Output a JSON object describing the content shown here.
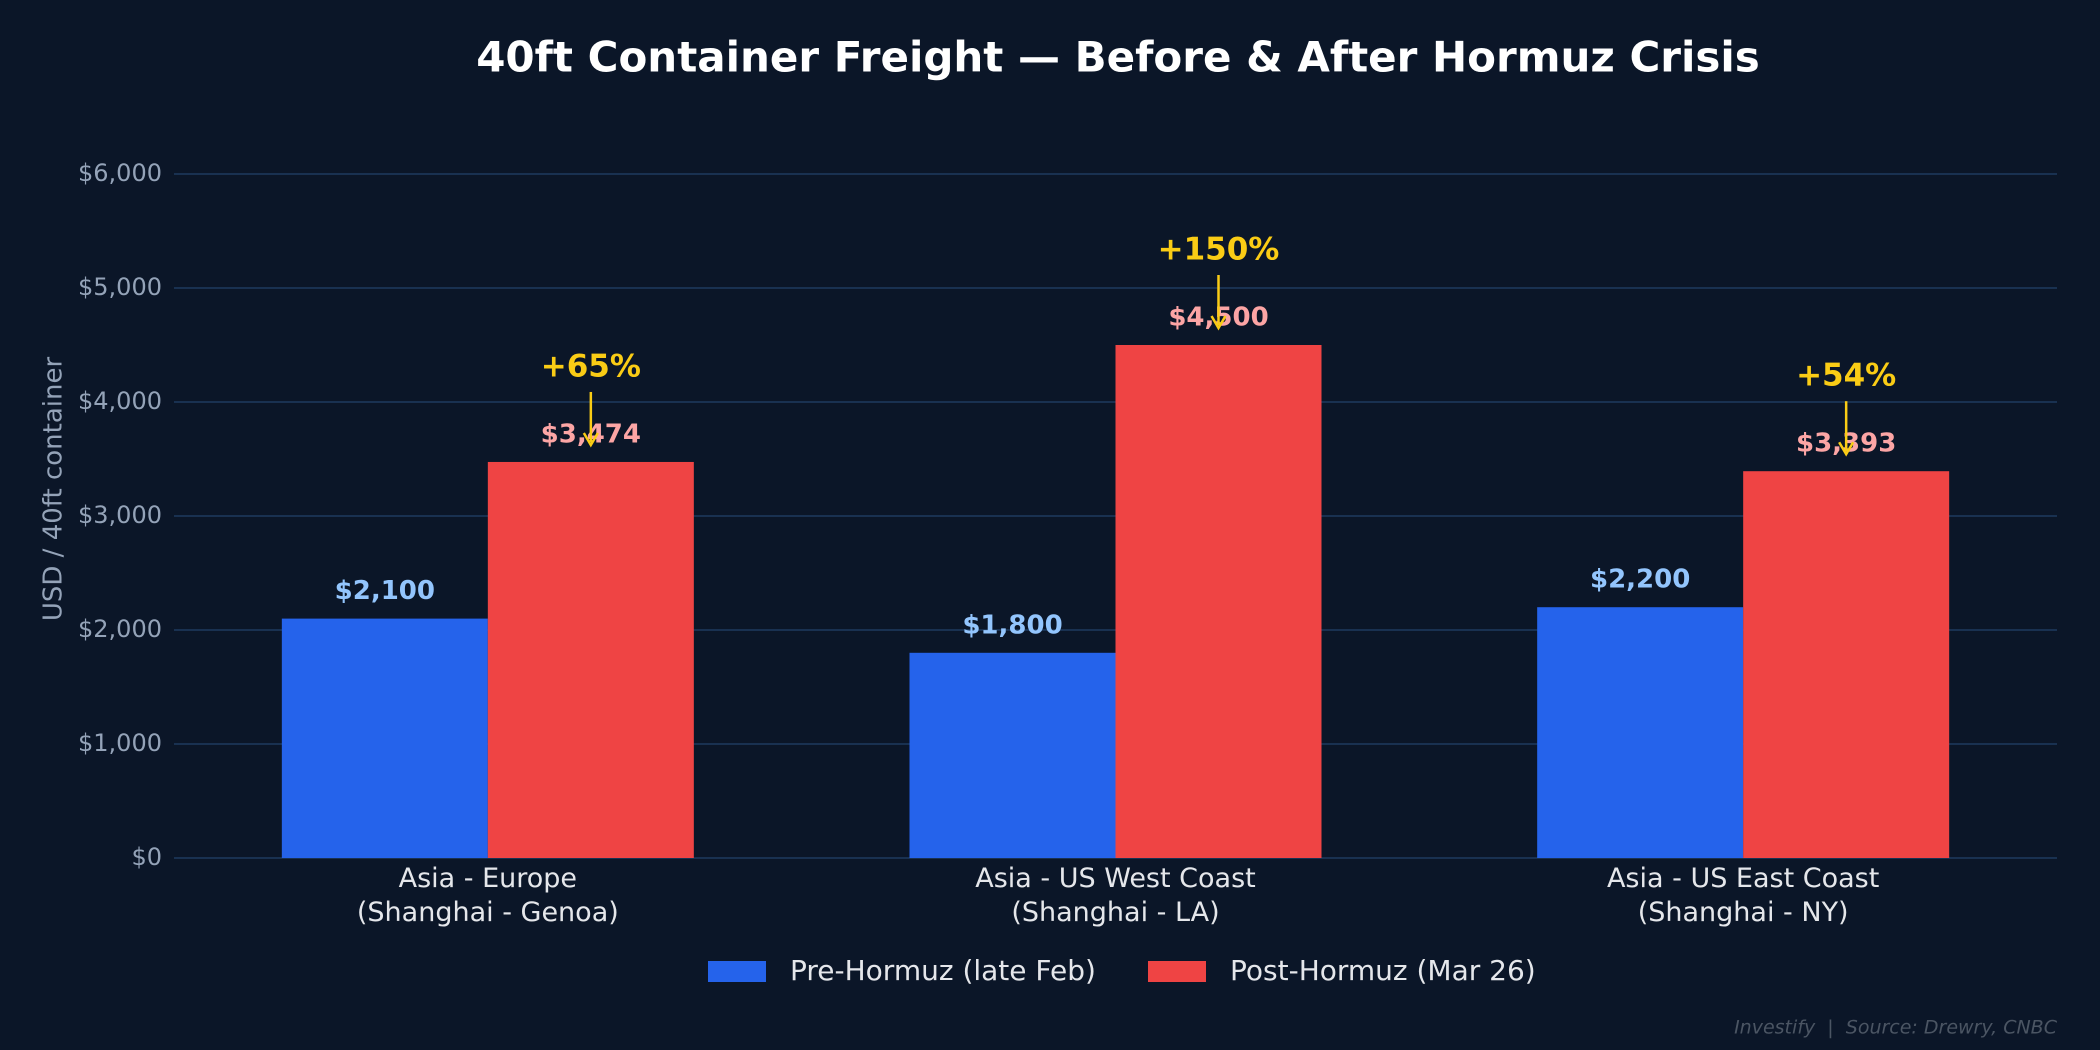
{
  "chart_data": {
    "type": "bar",
    "title": "40ft Container Freight — Before & After Hormuz Crisis",
    "y_label": "USD / 40ft container",
    "categories": [
      "Asia - Europe\n(Shanghai - Genoa)",
      "Asia - US West Coast\n(Shanghai - LA)",
      "Asia - US East Coast\n(Shanghai - NY)"
    ],
    "series": [
      {
        "name": "Pre-Hormuz (late Feb)",
        "color": "#2563eb",
        "label_color": "#93c5fd",
        "values": [
          2100,
          1800,
          2200
        ],
        "value_labels": [
          "$2,100",
          "$1,800",
          "$2,200"
        ]
      },
      {
        "name": "Post-Hormuz (Mar 26)",
        "color": "#ef4444",
        "label_color": "#fca5a5",
        "values": [
          3474,
          4500,
          3393
        ],
        "value_labels": [
          "$3,474",
          "$4,500",
          "$3,393"
        ]
      }
    ],
    "annotations": [
      "+65%",
      "+150%",
      "+54%"
    ],
    "annotation_color": "#facc15",
    "ylim": [
      0,
      6000
    ],
    "yticks": [
      {
        "value": 0,
        "label": "$0"
      },
      {
        "value": 1000,
        "label": "$1,000"
      },
      {
        "value": 2000,
        "label": "$2,000"
      },
      {
        "value": 3000,
        "label": "$3,000"
      },
      {
        "value": 4000,
        "label": "$4,000"
      },
      {
        "value": 5000,
        "label": "$5,000"
      },
      {
        "value": 6000,
        "label": "$6,000"
      }
    ],
    "grid": true,
    "legend": "bottom",
    "footer": "Investify  |  Source: Drewry, CNBC"
  }
}
